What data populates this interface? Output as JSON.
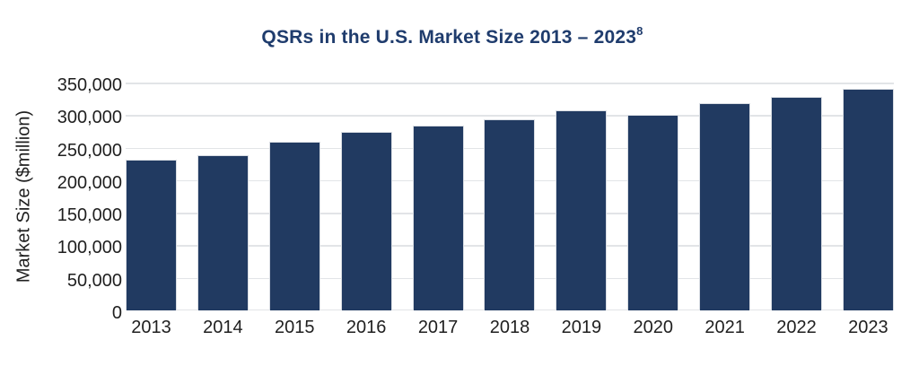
{
  "chart_data": {
    "type": "bar",
    "title": "QSRs in the U.S. Market Size 2013 – 2023",
    "title_superscript": "8",
    "xlabel": "",
    "ylabel": "Market Size ($million)",
    "categories": [
      "2013",
      "2014",
      "2015",
      "2016",
      "2017",
      "2018",
      "2019",
      "2020",
      "2021",
      "2022",
      "2023"
    ],
    "values": [
      231000,
      239000,
      259000,
      274000,
      284000,
      294000,
      308000,
      300000,
      319000,
      328000,
      340000
    ],
    "ylim": [
      0,
      350000
    ],
    "ytick_interval": 50000,
    "ytick_labels_top_to_bottom": [
      "350,000",
      "300,000",
      "250,000",
      "200,000",
      "150,000",
      "100,000",
      "50,000",
      "0"
    ],
    "grid": true,
    "legend_position": "none",
    "colors": {
      "background": "#ffffff",
      "bar_fill": "#213a61",
      "bar_border": "#d9dde3",
      "title_text": "#1f3c6d",
      "axis_text": "#1f1f1f",
      "gridline": "#e2e4e7"
    }
  }
}
